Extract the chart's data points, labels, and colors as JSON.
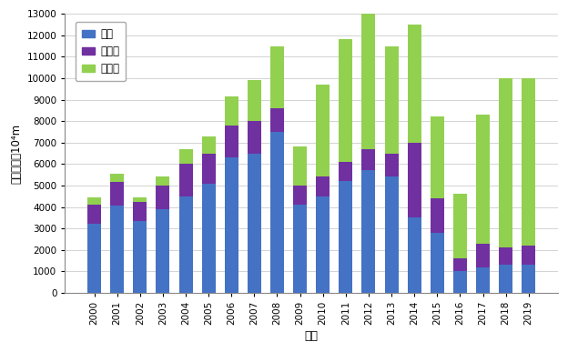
{
  "years": [
    2000,
    2001,
    2002,
    2003,
    2004,
    2005,
    2006,
    2007,
    2008,
    2009,
    2010,
    2011,
    2012,
    2013,
    2014,
    2015,
    2016,
    2017,
    2018,
    2019
  ],
  "zhijing": [
    3200,
    4050,
    3350,
    3900,
    4500,
    5100,
    6300,
    6500,
    7500,
    4100,
    4500,
    5200,
    5700,
    5400,
    3500,
    2800,
    1000,
    1200,
    1300,
    1300
  ],
  "dingxiangjing": [
    900,
    1100,
    900,
    1100,
    1500,
    1400,
    1500,
    1500,
    1100,
    900,
    900,
    900,
    1000,
    1100,
    3500,
    1600,
    600,
    1100,
    800,
    900
  ],
  "shuipingjing": [
    350,
    400,
    200,
    400,
    700,
    800,
    1350,
    1900,
    2900,
    1800,
    4300,
    5700,
    6500,
    5000,
    5500,
    3800,
    3000,
    6000,
    7900,
    7800
  ],
  "colors": {
    "zhijing": "#4472C4",
    "dingxiangjing": "#7030A0",
    "shuipingjing": "#92D050"
  },
  "legend_labels": [
    "直井",
    "定向井",
    "水平井"
  ],
  "xlabel": "年份",
  "ylabel": "钒井进尺／10⁴m",
  "ylim": [
    0,
    13000
  ],
  "yticks": [
    0,
    1000,
    2000,
    3000,
    4000,
    5000,
    6000,
    7000,
    8000,
    9000,
    10000,
    11000,
    12000,
    13000
  ]
}
